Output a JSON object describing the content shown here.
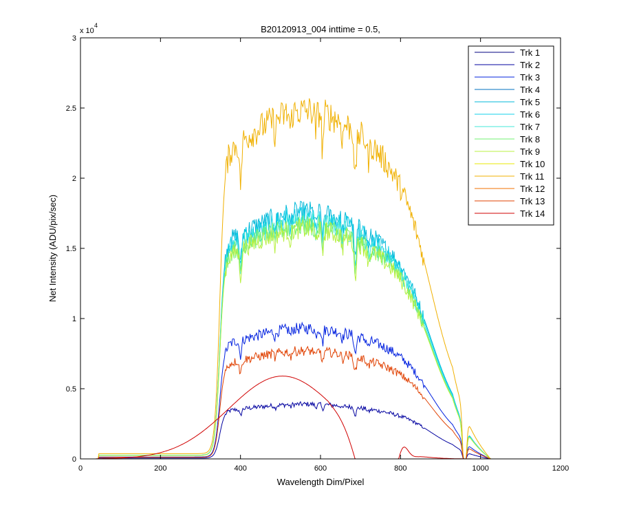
{
  "chart_data": {
    "type": "line",
    "title": "B20120913_004 inttime = 0.5,",
    "xlabel": "Wavelength Dim/Pixel",
    "ylabel": "Net Intensity (ADU/pix/sec)",
    "xlim": [
      0,
      1200
    ],
    "ylim": [
      0,
      30000
    ],
    "x_ticks": [
      0,
      200,
      400,
      600,
      800,
      1000,
      1200
    ],
    "y_ticks": [
      0,
      0.5,
      1,
      1.5,
      2,
      2.5,
      3
    ],
    "y_multiplier_base": "x 10",
    "y_multiplier_exp": "4",
    "grid": false,
    "legend_position": "top-right",
    "series": [
      {
        "name": "Trk 1",
        "color": "#00007f",
        "profile": "flat",
        "scale": 0.006
      },
      {
        "name": "Trk 2",
        "color": "#00009f",
        "profile": "spec",
        "scale": 3900
      },
      {
        "name": "Trk 3",
        "color": "#0020df",
        "profile": "spec",
        "scale": 9300
      },
      {
        "name": "Trk 4",
        "color": "#0070c0",
        "profile": "flat",
        "scale": 0.006
      },
      {
        "name": "Trk 5",
        "color": "#00b8d8",
        "profile": "spec",
        "scale": 17600
      },
      {
        "name": "Trk 6",
        "color": "#10d0e8",
        "profile": "spec",
        "scale": 17300
      },
      {
        "name": "Trk 7",
        "color": "#40e8d8",
        "profile": "spec",
        "scale": 16900
      },
      {
        "name": "Trk 8",
        "color": "#70f070",
        "profile": "spec",
        "scale": 16600
      },
      {
        "name": "Trk 9",
        "color": "#b8f040",
        "profile": "spec",
        "scale": 16400
      },
      {
        "name": "Trk 10",
        "color": "#e8e800",
        "profile": "flat",
        "scale": 0.006
      },
      {
        "name": "Trk 11",
        "color": "#f0b000",
        "profile": "spec",
        "scale": 24800
      },
      {
        "name": "Trk 12",
        "color": "#f07000",
        "profile": "flat",
        "scale": 0.006
      },
      {
        "name": "Trk 13",
        "color": "#e04000",
        "profile": "spec",
        "scale": 7700
      },
      {
        "name": "Trk 14",
        "color": "#d00000",
        "profile": "broad",
        "scale": 5900
      }
    ]
  }
}
